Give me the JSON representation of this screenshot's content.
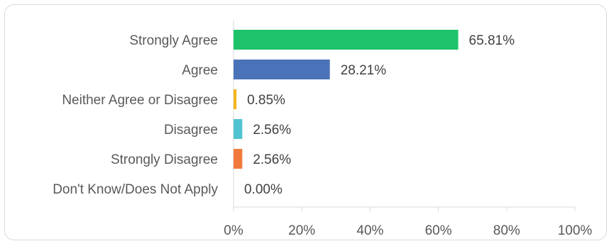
{
  "chart_data": {
    "type": "bar",
    "orientation": "horizontal",
    "title": "",
    "xlabel": "",
    "ylabel": "",
    "xlim": [
      0,
      100
    ],
    "grid": false,
    "legend": "none",
    "categories": [
      "Strongly Agree",
      "Agree",
      "Neither Agree or Disagree",
      "Disagree",
      "Strongly Disagree",
      "Don't Know/Does Not Apply"
    ],
    "values": [
      65.81,
      28.21,
      0.85,
      2.56,
      2.56,
      0.0
    ],
    "value_labels": [
      "65.81%",
      "28.21%",
      "0.85%",
      "2.56%",
      "2.56%",
      "0.00%"
    ],
    "colors": [
      "#1ec26a",
      "#4a72b8",
      "#f2b41c",
      "#4fc3cf",
      "#f07a3c",
      "#9e9e9e"
    ],
    "x_ticks": [
      0,
      20,
      40,
      60,
      80,
      100
    ],
    "x_tick_labels": [
      "0%",
      "20%",
      "40%",
      "60%",
      "80%",
      "100%"
    ]
  }
}
